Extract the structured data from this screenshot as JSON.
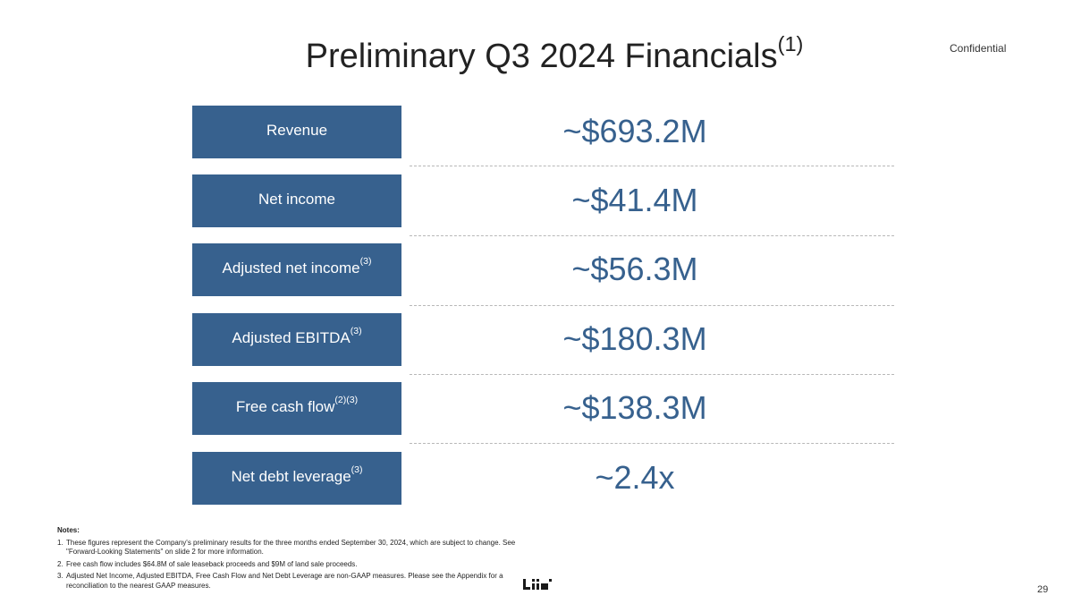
{
  "title": {
    "text": "Preliminary Q3 2024 Financials",
    "sup": "(1)"
  },
  "confidential": "Confidential",
  "metrics": [
    {
      "label": "Revenue",
      "sup": "",
      "value": "~$693.2M"
    },
    {
      "label": "Net income",
      "sup": "",
      "value": "~$41.4M"
    },
    {
      "label": "Adjusted net income",
      "sup": "(3)",
      "value": "~$56.3M"
    },
    {
      "label": "Adjusted EBITDA",
      "sup": "(3)",
      "value": "~$180.3M"
    },
    {
      "label": "Free cash flow",
      "sup": "(2)(3)",
      "value": "~$138.3M"
    },
    {
      "label": "Net debt leverage",
      "sup": "(3)",
      "value": "~2.4x"
    }
  ],
  "notes": {
    "heading": "Notes:",
    "items": [
      {
        "num": "1.",
        "text": "These figures represent the Company's preliminary results for the three months ended September 30, 2024, which are subject to change. See \"Forward-Looking Statements\" on slide 2 for more information."
      },
      {
        "num": "2.",
        "text": "Free cash flow includes $64.8M of sale leaseback proceeds and $9M of land sale proceeds."
      },
      {
        "num": "3.",
        "text": "Adjusted Net Income, Adjusted EBITDA, Free Cash Flow and Net Debt Leverage are non-GAAP measures. Please see the Appendix for a reconciliation to the nearest GAAP measures."
      }
    ]
  },
  "logo_icon": "company-logo-icon",
  "page_number": "29",
  "colors": {
    "accent": "#37618e",
    "label_text": "#ffffff",
    "divider": "#b8b8b8"
  }
}
